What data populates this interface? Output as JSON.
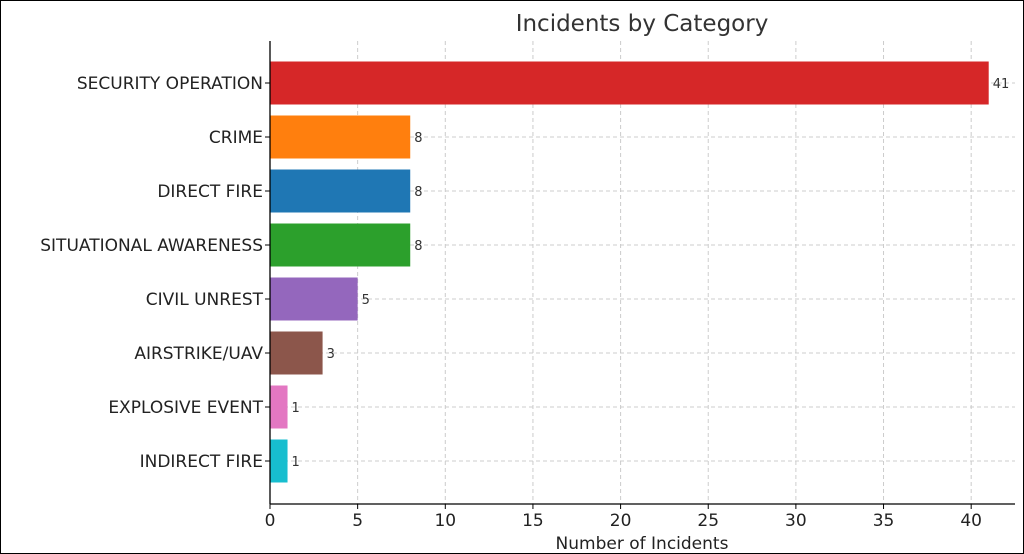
{
  "chart_data": {
    "type": "bar",
    "orientation": "horizontal",
    "title": "Incidents by Category",
    "xlabel": "Number of Incidents",
    "ylabel": "",
    "categories": [
      "SECURITY OPERATION",
      "CRIME",
      "DIRECT FIRE",
      "SITUATIONAL AWARENESS",
      "CIVIL UNREST",
      "AIRSTRIKE/UAV",
      "EXPLOSIVE EVENT",
      "INDIRECT FIRE"
    ],
    "values": [
      41,
      8,
      8,
      8,
      5,
      3,
      1,
      1
    ],
    "colors": [
      "#d62728",
      "#ff7f0e",
      "#1f77b4",
      "#2ca02c",
      "#9467bd",
      "#8c564b",
      "#e377c2",
      "#17becf"
    ],
    "xlim": [
      0,
      42.5
    ],
    "xticks": [
      0,
      5,
      10,
      15,
      20,
      25,
      30,
      35,
      40
    ],
    "grid": true,
    "data_labels": true
  }
}
